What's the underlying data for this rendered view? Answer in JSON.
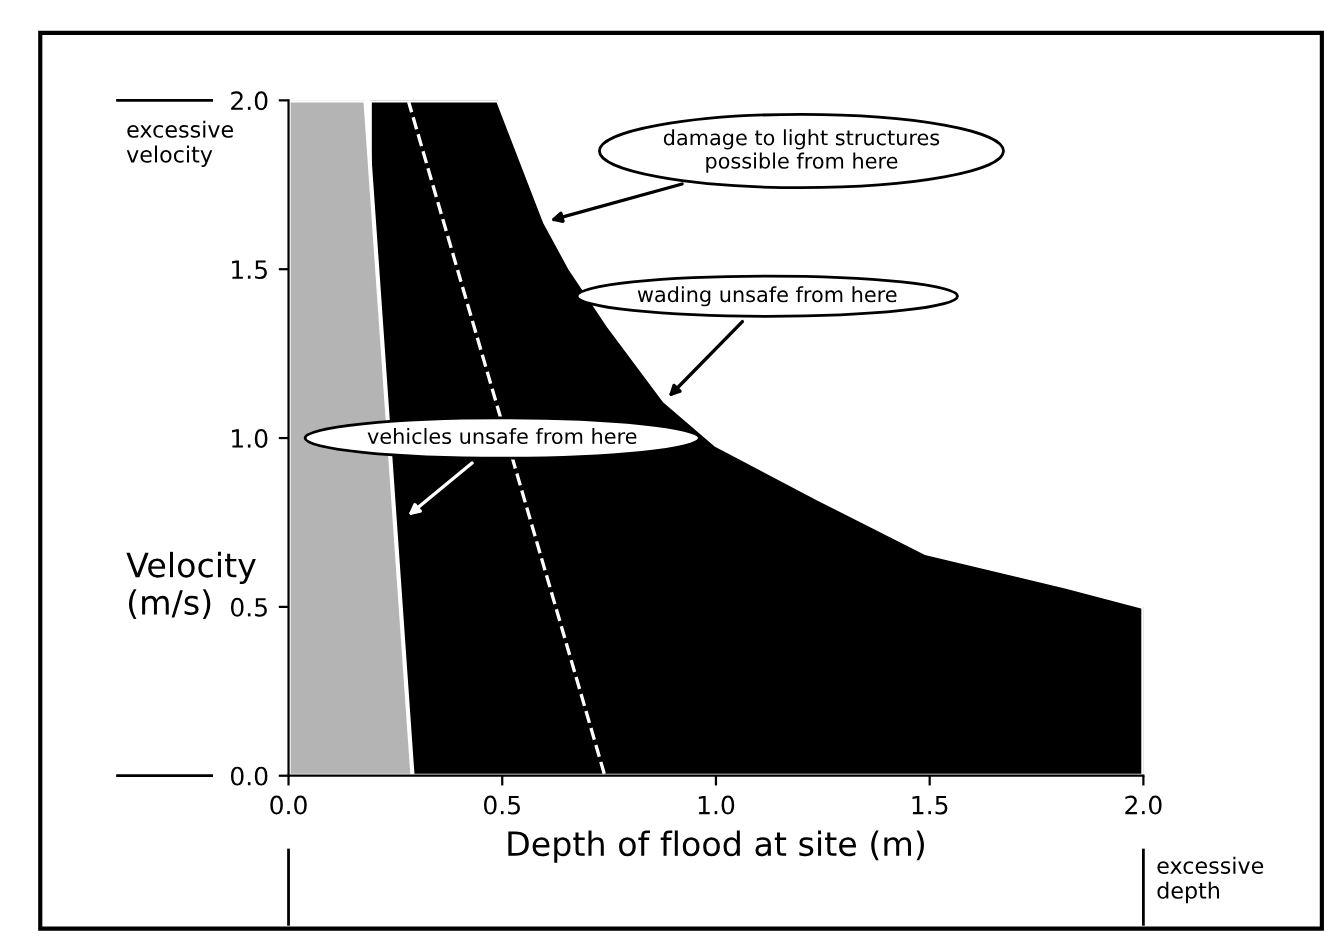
{
  "chart_data": {
    "type": "area",
    "xlabel": "Depth of flood at site (m)",
    "ylabel": "Velocity\n(m/s)",
    "xlim": [
      0,
      2.0
    ],
    "ylim": [
      0,
      2.0
    ],
    "xticks": [
      {
        "value": 0,
        "label": "0.0"
      },
      0.5,
      {
        "value": 1,
        "label": "1.0"
      },
      1.5,
      {
        "value": 2,
        "label": "2.0"
      }
    ],
    "yticks": [
      {
        "value": 0,
        "label": "0.0"
      },
      0.5,
      {
        "value": 1,
        "label": "1.0"
      },
      1.5,
      {
        "value": 2,
        "label": "2.0"
      }
    ],
    "grid": false,
    "legend": false,
    "series": [
      {
        "color": "#000000",
        "x": [
          0.19,
          0.49,
          0.6,
          0.66,
          0.75,
          0.88,
          1.0,
          1.24,
          1.49,
          1.82,
          2.0
        ],
        "values": [
          2.0,
          2.0,
          1.64,
          1.5,
          1.33,
          1.11,
          0.98,
          0.82,
          0.66,
          0.56,
          0.5
        ]
      },
      {
        "color": "#b4b4b4",
        "x": [
          0,
          0.18,
          0.29
        ],
        "values": [
          2.0,
          2.0,
          0
        ]
      },
      {
        "type": "line",
        "color": "#ffffff",
        "line_style": "dashed",
        "x": [
          0.28,
          0.74
        ],
        "values": [
          2.0,
          0
        ]
      }
    ],
    "ref_lines": [
      {
        "axis": "y",
        "value": 2.0,
        "label": "excessive velocity"
      },
      {
        "axis": "x",
        "value": 2.0,
        "label": "excessive depth"
      }
    ],
    "annotations": [
      {
        "text": "damage to light structures\npossible from here",
        "x": 0.6,
        "y": 1.64
      },
      {
        "text": "wading unsafe from here",
        "x": 0.88,
        "y": 1.11
      },
      {
        "text": "vehicles unsafe from here",
        "x": 0.27,
        "y": 0.76
      }
    ]
  }
}
